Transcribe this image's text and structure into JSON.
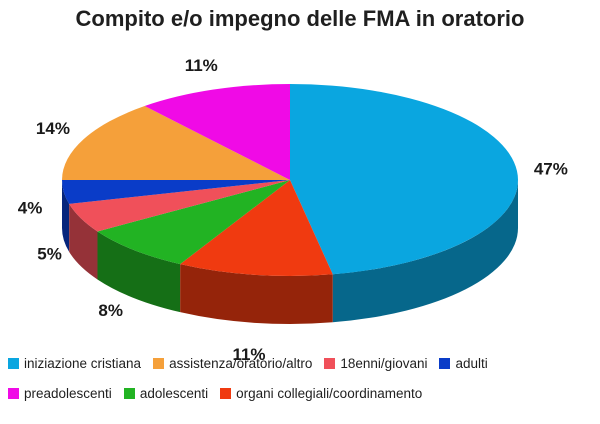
{
  "chart_data": {
    "type": "pie",
    "title": "Compito e/o impegno delle FMA in oratorio",
    "slices": [
      {
        "label": "iniziazione cristiana",
        "value": 47,
        "value_label": "47%",
        "color": "#0aa6e0"
      },
      {
        "label": "organi collegiali/coordinamento",
        "value": 11,
        "value_label": "11%",
        "color": "#f03a10"
      },
      {
        "label": "adolescenti",
        "value": 8,
        "value_label": "8%",
        "color": "#22b323"
      },
      {
        "label": "18enni/giovani",
        "value": 5,
        "value_label": "5%",
        "color": "#f0505a"
      },
      {
        "label": "adulti",
        "value": 4,
        "value_label": "4%",
        "color": "#0a3cc8"
      },
      {
        "label": "assistenza/oratorio/altro",
        "value": 14,
        "value_label": "14%",
        "color": "#f5a03a"
      },
      {
        "label": "preadolescenti",
        "value": 11,
        "value_label": "11%",
        "color": "#f00ae6"
      }
    ],
    "legend": {
      "position": "bottom",
      "rows": [
        [
          "iniziazione cristiana",
          "assistenza/oratorio/altro",
          "18enni/giovani",
          "adulti"
        ],
        [
          "preadolescenti",
          "adolescenti",
          "organi collegiali/coordinamento"
        ]
      ]
    }
  }
}
